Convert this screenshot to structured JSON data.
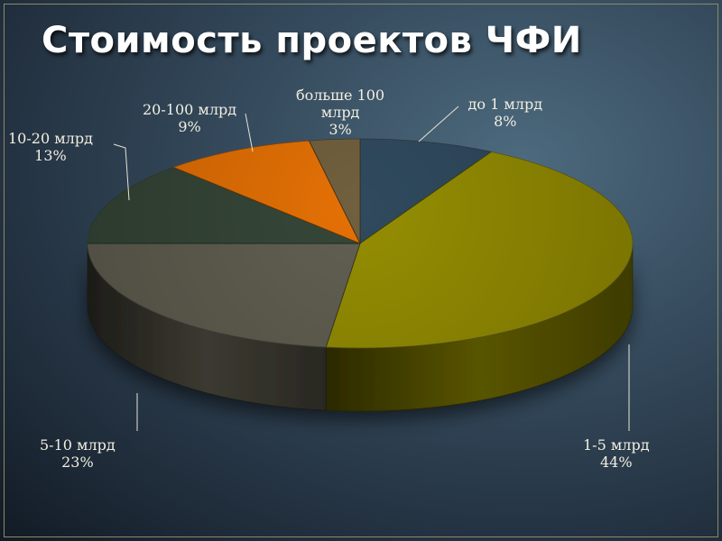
{
  "slide": {
    "title": "Стоимость проектов ЧФИ"
  },
  "chart_data": {
    "type": "pie",
    "title": "Стоимость проектов ЧФИ",
    "three_d": true,
    "slices": [
      {
        "label": "до 1 млрд",
        "value": 8,
        "display": "8%",
        "color": "#283e4e"
      },
      {
        "label": "1-5 млрд",
        "value": 44,
        "display": "44%",
        "color": "#7c7602"
      },
      {
        "label": "5-10 млрд",
        "value": 23,
        "display": "23%",
        "color": "#525044"
      },
      {
        "label": "10-20 млрд",
        "value": 13,
        "display": "13%",
        "color": "#2d3b2f"
      },
      {
        "label": "20-100 млрд",
        "value": 9,
        "display": "9%",
        "color": "#bf5e04"
      },
      {
        "label": "больше 100 млрд",
        "value": 3,
        "display": "3%",
        "color": "#5e5034"
      }
    ],
    "legend": "none",
    "data_labels": "outside"
  }
}
